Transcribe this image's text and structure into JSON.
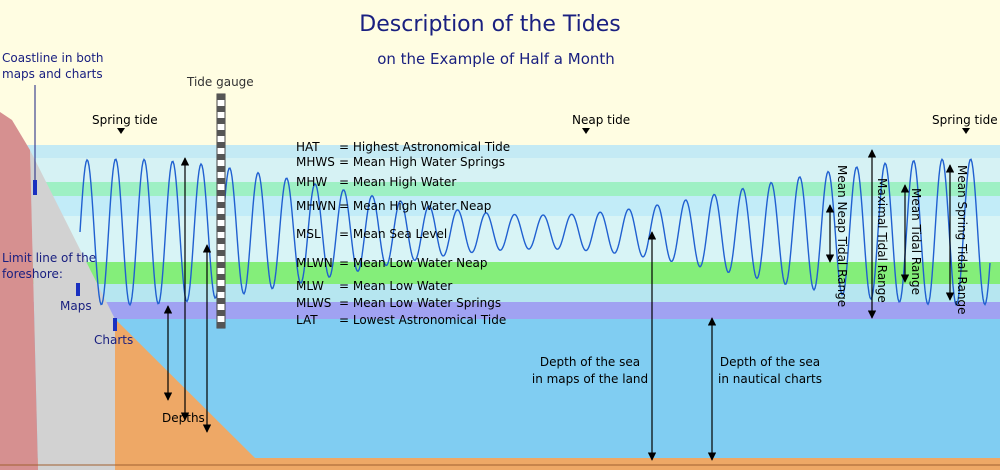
{
  "title": "Description of the Tides",
  "subtitle": "on the Example of Half a Month",
  "labels": {
    "coastline": [
      "Coastline in both",
      "maps and charts"
    ],
    "tide_gauge": "Tide gauge",
    "spring_tide_left": "Spring tide",
    "neap_tide": "Neap tide",
    "spring_tide_right": "Spring tide",
    "foreshore": [
      "Limit line of the",
      "foreshore:"
    ],
    "maps": "Maps",
    "charts": "Charts",
    "depths": "Depths",
    "depth_maps": [
      "Depth of the sea",
      "in maps of the land"
    ],
    "depth_charts": [
      "Depth of the sea",
      "in nautical charts"
    ],
    "mean_neap_range": "Mean Neap Tidal Range",
    "maximal_range": "Maximal Tidal Range",
    "mean_range": "Mean Tidal Range",
    "mean_spring_range": "Mean Spring Tidal Range"
  },
  "legend": {
    "rows": [
      {
        "abbr": "HAT",
        "desc": "= Highest Astronomical Tide"
      },
      {
        "abbr": "MHWS",
        "desc": "= Mean High Water Springs"
      },
      {
        "abbr": "MHW",
        "desc": "= Mean High Water"
      },
      {
        "abbr": "MHWN",
        "desc": "= Mean High Water Neap"
      },
      {
        "abbr": "MSL",
        "desc": "= Mean Sea Level"
      },
      {
        "abbr": "MLWN",
        "desc": "= Mean Low Water Neap"
      },
      {
        "abbr": "MLW",
        "desc": "= Mean Low Water"
      },
      {
        "abbr": "MLWS",
        "desc": "= Mean Low Water Springs"
      },
      {
        "abbr": "LAT",
        "desc": "= Lowest Astronomical Tide"
      }
    ]
  }
}
